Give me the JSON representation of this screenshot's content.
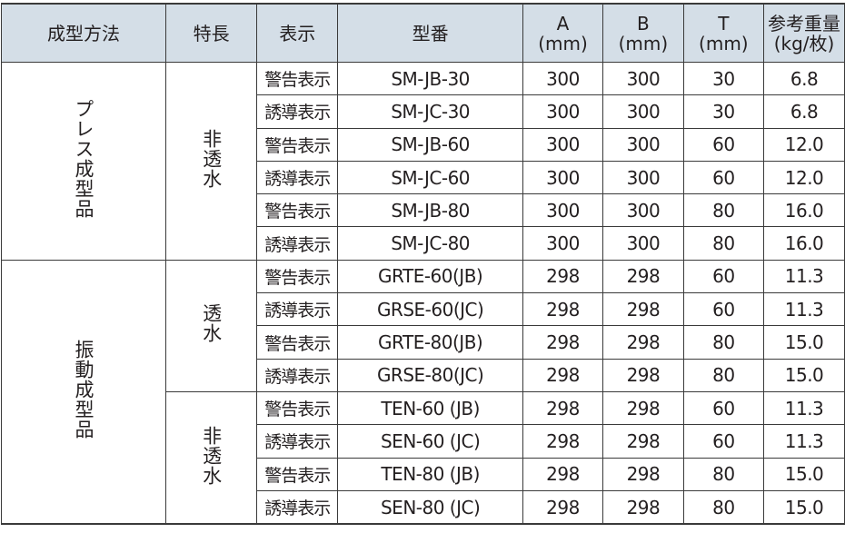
{
  "header": {
    "method": "成型方法",
    "feature": "特長",
    "display": "表示",
    "model": "型番",
    "a": "A",
    "b": "B",
    "t": "T",
    "mm": "(mm)",
    "weight": "参考重量",
    "weight_unit": "(kg/枚)"
  },
  "groups": [
    {
      "method": "プレス成型品",
      "features": [
        {
          "feature": "非透水",
          "rows": [
            {
              "display": "警告表示",
              "model": "SM-JB-30",
              "a": "300",
              "b": "300",
              "t": "30",
              "w": "6.8"
            },
            {
              "display": "誘導表示",
              "model": "SM-JC-30",
              "a": "300",
              "b": "300",
              "t": "30",
              "w": "6.8"
            },
            {
              "display": "警告表示",
              "model": "SM-JB-60",
              "a": "300",
              "b": "300",
              "t": "60",
              "w": "12.0"
            },
            {
              "display": "誘導表示",
              "model": "SM-JC-60",
              "a": "300",
              "b": "300",
              "t": "60",
              "w": "12.0"
            },
            {
              "display": "警告表示",
              "model": "SM-JB-80",
              "a": "300",
              "b": "300",
              "t": "80",
              "w": "16.0"
            },
            {
              "display": "誘導表示",
              "model": "SM-JC-80",
              "a": "300",
              "b": "300",
              "t": "80",
              "w": "16.0"
            }
          ]
        }
      ]
    },
    {
      "method": "振動成型品",
      "features": [
        {
          "feature": "透水",
          "rows": [
            {
              "display": "警告表示",
              "model": "GRTE-60(JB)",
              "a": "298",
              "b": "298",
              "t": "60",
              "w": "11.3"
            },
            {
              "display": "誘導表示",
              "model": "GRSE-60(JC)",
              "a": "298",
              "b": "298",
              "t": "60",
              "w": "11.3"
            },
            {
              "display": "警告表示",
              "model": "GRTE-80(JB)",
              "a": "298",
              "b": "298",
              "t": "80",
              "w": "15.0"
            },
            {
              "display": "誘導表示",
              "model": "GRSE-80(JC)",
              "a": "298",
              "b": "298",
              "t": "80",
              "w": "15.0"
            }
          ]
        },
        {
          "feature": "非透水",
          "rows": [
            {
              "display": "警告表示",
              "model": "TEN-60 (JB)",
              "a": "298",
              "b": "298",
              "t": "60",
              "w": "11.3"
            },
            {
              "display": "誘導表示",
              "model": "SEN-60 (JC)",
              "a": "298",
              "b": "298",
              "t": "60",
              "w": "11.3"
            },
            {
              "display": "警告表示",
              "model": "TEN-80 (JB)",
              "a": "298",
              "b": "298",
              "t": "80",
              "w": "15.0"
            },
            {
              "display": "誘導表示",
              "model": "SEN-80 (JC)",
              "a": "298",
              "b": "298",
              "t": "80",
              "w": "15.0"
            }
          ]
        }
      ]
    }
  ]
}
